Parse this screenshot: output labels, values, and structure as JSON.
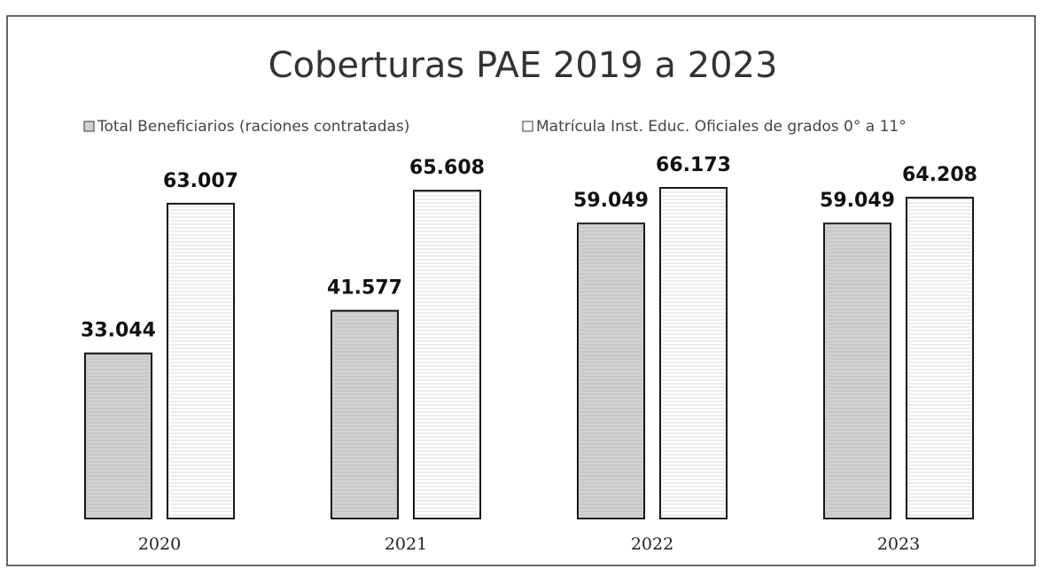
{
  "chart_data": {
    "type": "bar",
    "title": "Coberturas PAE 2019 a 2023",
    "categories": [
      "2020",
      "2021",
      "2022",
      "2023"
    ],
    "series": [
      {
        "name": "Total Beneficiarios (raciones contratadas)",
        "color": "#d2d2d2",
        "values": [
          33044,
          41577,
          59049,
          59049
        ],
        "value_labels": [
          "33.044",
          "41.577",
          "59.049",
          "59.049"
        ]
      },
      {
        "name": "Matrícula Inst. Educ. Oficiales de grados 0° a 11°",
        "color": "#ffffff",
        "values": [
          63007,
          65608,
          66173,
          64208
        ],
        "value_labels": [
          "63.007",
          "65.608",
          "66.173",
          "64.208"
        ]
      }
    ]
  }
}
